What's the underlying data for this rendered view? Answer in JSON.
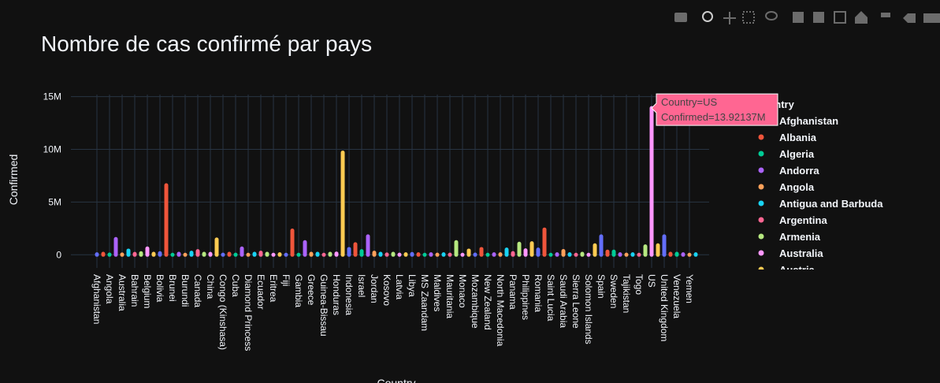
{
  "chart_data": {
    "type": "stem",
    "title": "Nombre de cas confirmé par pays",
    "x_label": "Country",
    "y_label": "Confirmed",
    "legend_title": "Country",
    "categories": [
      "Afghanistan",
      null,
      "Angola",
      null,
      "Australia",
      null,
      "Bahrain",
      null,
      "Belgium",
      null,
      "Bolivia",
      null,
      "Brunei",
      null,
      "Burundi",
      null,
      "Canada",
      null,
      "China",
      null,
      "Congo (Kinshasa)",
      null,
      "Cuba",
      null,
      "Diamond Princess",
      null,
      "Ecuador",
      null,
      "Eritrea",
      null,
      "Fiji",
      null,
      "Gambia",
      null,
      "Greece",
      null,
      "Guinea-Bissau",
      null,
      "Honduras",
      null,
      "Indonesia",
      null,
      "Israel",
      null,
      "Jordan",
      null,
      "Kosovo",
      null,
      "Latvia",
      null,
      "Libya",
      null,
      "MS Zaandam",
      null,
      "Maldives",
      null,
      "Mauritania",
      null,
      "Monaco",
      null,
      "Mozambique",
      null,
      "New Zealand",
      null,
      "North Macedonia",
      null,
      "Panama",
      null,
      "Philippines",
      null,
      "Romania",
      null,
      "Saint Lucia",
      null,
      "Saudi Arabia",
      null,
      "Sierra Leone",
      null,
      "Solomon Islands",
      null,
      "Spain",
      null,
      "Sweden",
      null,
      "Tajikistan",
      null,
      "Togo",
      null,
      "US",
      null,
      "United Kingdom",
      null,
      "Venezuela",
      null,
      "Yemen",
      null
    ],
    "values": [
      50000,
      100000,
      20000,
      1500000,
      30000,
      400000,
      90000,
      150000,
      600000,
      100000,
      150000,
      6600000,
      0,
      100000,
      0,
      200000,
      350000,
      100000,
      90000,
      1450000,
      10000,
      100000,
      10000,
      600000,
      0,
      100000,
      200000,
      100000,
      0,
      50000,
      0,
      2300000,
      0,
      1200000,
      100000,
      100000,
      0,
      100000,
      120000,
      9700000,
      550000,
      1000000,
      350000,
      1750000,
      200000,
      100000,
      30000,
      100000,
      10000,
      50000,
      80000,
      50000,
      0,
      50000,
      10000,
      50000,
      10000,
      1200000,
      0,
      400000,
      20000,
      550000,
      0,
      50000,
      50000,
      500000,
      160000,
      1050000,
      420000,
      1100000,
      500000,
      2400000,
      0,
      50000,
      360000,
      50000,
      0,
      100000,
      0,
      900000,
      1750000,
      300000,
      300000,
      50000,
      10000,
      50000,
      0,
      800000,
      13921370,
      900000,
      1750000,
      100000,
      100000,
      50000,
      2000,
      50000
    ],
    "palette": [
      "#636efa",
      "#EF553B",
      "#00cc96",
      "#ab63fa",
      "#FFA15A",
      "#19d3f3",
      "#FF6692",
      "#B6E880",
      "#FF97FF",
      "#FECB52"
    ],
    "ylim": [
      -800000,
      15200000
    ],
    "yticks": [
      0,
      {
        "value": 5000000,
        "label": "5M"
      },
      {
        "value": 10000000,
        "label": "10M"
      },
      {
        "value": 15000000,
        "label": "15M"
      }
    ],
    "grid": true,
    "legend": [
      {
        "name": "Afghanistan",
        "color": "#636efa"
      },
      {
        "name": "Albania",
        "color": "#EF553B"
      },
      {
        "name": "Algeria",
        "color": "#00cc96"
      },
      {
        "name": "Andorra",
        "color": "#ab63fa"
      },
      {
        "name": "Angola",
        "color": "#FFA15A"
      },
      {
        "name": "Antigua and Barbuda",
        "color": "#19d3f3"
      },
      {
        "name": "Argentina",
        "color": "#FF6692"
      },
      {
        "name": "Armenia",
        "color": "#B6E880"
      },
      {
        "name": "Australia",
        "color": "#FF97FF"
      },
      {
        "name": "Austria",
        "color": "#FECB52"
      }
    ],
    "tooltip": {
      "index": 88,
      "color": "#FF6692",
      "lines": [
        "Country=US",
        "Confirmed=13.92137M"
      ]
    }
  }
}
